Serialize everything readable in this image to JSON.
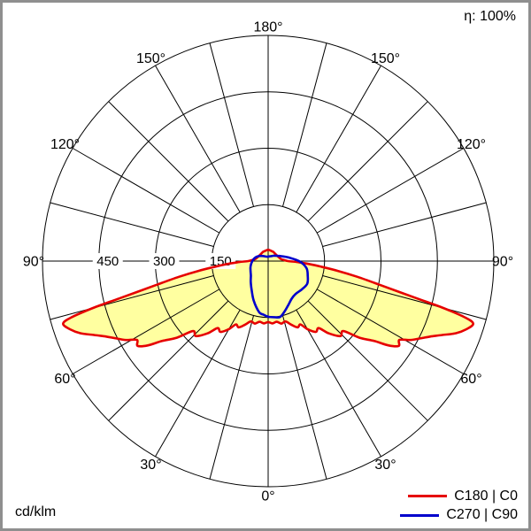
{
  "header": {
    "efficiency": "η: 100%"
  },
  "footer": {
    "unit": "cd/klm"
  },
  "legend": [
    {
      "label": "C180 | C0",
      "color": "#e60000"
    },
    {
      "label": "C270 | C90",
      "color": "#0000cc"
    }
  ],
  "chart_data": {
    "type": "polar-line",
    "title": "Luminous intensity distribution (polar)",
    "unit": "cd/klm",
    "efficiency_percent": 100,
    "radial_axis": {
      "max": 600,
      "rings": [
        150,
        300,
        450,
        600
      ],
      "ring_labels": [
        450,
        300,
        150
      ]
    },
    "angle_axis": {
      "labels_deg": [
        0,
        30,
        60,
        90,
        120,
        150,
        180
      ],
      "spoke_step_deg": 15,
      "zero_position": "bottom"
    },
    "grid_color": "#000000",
    "series": [
      {
        "name": "C180 | C0",
        "color": "#e60000",
        "fill": "#ffffa0",
        "points": [
          [
            0,
            162
          ],
          [
            4,
            166
          ],
          [
            8,
            163
          ],
          [
            12,
            170
          ],
          [
            16,
            167
          ],
          [
            20,
            180
          ],
          [
            24,
            193
          ],
          [
            27,
            189
          ],
          [
            30,
            209
          ],
          [
            34,
            227
          ],
          [
            37,
            223
          ],
          [
            40,
            251
          ],
          [
            44,
            277
          ],
          [
            47,
            273
          ],
          [
            50,
            317
          ],
          [
            53,
            353
          ],
          [
            55,
            391
          ],
          [
            57,
            414
          ],
          [
            59,
            407
          ],
          [
            61,
            433
          ],
          [
            63,
            453
          ],
          [
            65,
            475
          ],
          [
            67,
            503
          ],
          [
            69,
            535
          ],
          [
            71,
            557
          ],
          [
            73,
            570
          ],
          [
            74,
            546
          ],
          [
            75,
            482
          ],
          [
            76,
            402
          ],
          [
            78,
            303
          ],
          [
            80,
            241
          ],
          [
            82,
            187
          ],
          [
            84,
            141
          ],
          [
            86,
            107
          ],
          [
            88,
            77
          ],
          [
            90,
            53
          ],
          [
            95,
            40
          ],
          [
            100,
            34
          ],
          [
            110,
            30
          ],
          [
            120,
            28
          ],
          [
            130,
            27
          ],
          [
            140,
            27
          ],
          [
            150,
            28
          ],
          [
            160,
            28
          ],
          [
            170,
            29
          ],
          [
            180,
            30
          ]
        ]
      },
      {
        "name": "C270 | C90",
        "color": "#0000cc",
        "fill": null,
        "right": [
          [
            0,
            148
          ],
          [
            6,
            150
          ],
          [
            12,
            152
          ],
          [
            18,
            141
          ],
          [
            25,
            128
          ],
          [
            32,
            118
          ],
          [
            40,
            114
          ],
          [
            50,
            117
          ],
          [
            60,
            120
          ],
          [
            70,
            112
          ],
          [
            80,
            103
          ],
          [
            90,
            82
          ],
          [
            100,
            55
          ],
          [
            110,
            38
          ],
          [
            120,
            28
          ],
          [
            135,
            20
          ],
          [
            150,
            15
          ],
          [
            165,
            13
          ],
          [
            180,
            12
          ]
        ],
        "left": [
          [
            0,
            148
          ],
          [
            5,
            143
          ],
          [
            10,
            138
          ],
          [
            20,
            112
          ],
          [
            30,
            88
          ],
          [
            40,
            72
          ],
          [
            50,
            60
          ],
          [
            60,
            54
          ],
          [
            70,
            50
          ],
          [
            80,
            46
          ],
          [
            90,
            42
          ],
          [
            100,
            38
          ],
          [
            110,
            33
          ],
          [
            120,
            27
          ],
          [
            135,
            19
          ],
          [
            150,
            14
          ],
          [
            165,
            12
          ],
          [
            180,
            12
          ]
        ]
      }
    ]
  }
}
